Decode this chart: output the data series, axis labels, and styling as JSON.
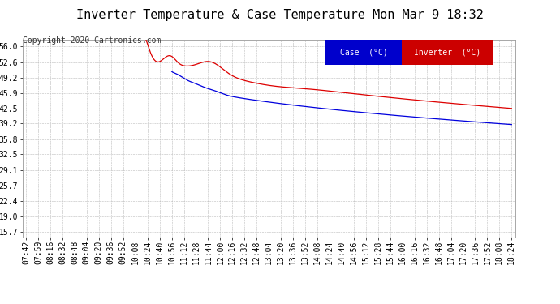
{
  "title": "Inverter Temperature & Case Temperature Mon Mar 9 18:32",
  "copyright": "Copyright 2020 Cartronics.com",
  "yticks": [
    15.7,
    19.0,
    22.4,
    25.7,
    29.1,
    32.5,
    35.8,
    39.2,
    42.5,
    45.9,
    49.2,
    52.6,
    56.0
  ],
  "ylim": [
    14.5,
    57.5
  ],
  "xtick_labels": [
    "07:42",
    "07:59",
    "08:16",
    "08:32",
    "08:48",
    "09:04",
    "09:20",
    "09:36",
    "09:52",
    "10:08",
    "10:24",
    "10:40",
    "10:56",
    "11:12",
    "11:28",
    "11:44",
    "12:00",
    "12:16",
    "12:32",
    "12:48",
    "13:04",
    "13:20",
    "13:36",
    "13:52",
    "14:08",
    "14:24",
    "14:40",
    "14:56",
    "15:12",
    "15:28",
    "15:44",
    "16:00",
    "16:16",
    "16:32",
    "16:48",
    "17:04",
    "17:20",
    "17:36",
    "17:52",
    "18:08",
    "18:24"
  ],
  "legend_case_color": "#0000cc",
  "legend_inv_color": "#cc0000",
  "bg_color": "#ffffff",
  "plot_bg_color": "#ffffff",
  "grid_color": "#bbbbbb",
  "case_color": "#0000dd",
  "inverter_color": "#dd0000",
  "title_fontsize": 11,
  "copyright_fontsize": 7,
  "tick_fontsize": 7,
  "title_color": "#000000"
}
